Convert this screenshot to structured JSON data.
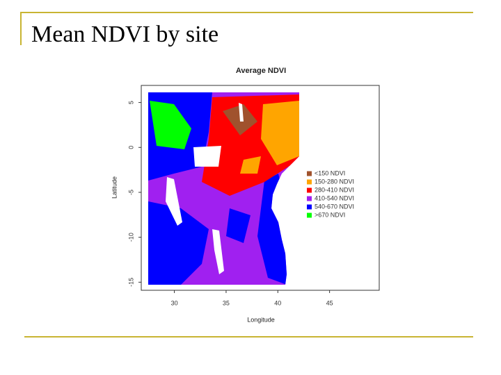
{
  "slide_title": "Mean NDVI by site",
  "chart_data": {
    "type": "map",
    "title": "Average NDVI",
    "x_label": "Longitude",
    "y_label": "Latitude",
    "xlim": [
      26.8,
      49.8
    ],
    "xticks": [
      30,
      35,
      40,
      45
    ],
    "ylim": [
      -15.9,
      6.9
    ],
    "yticks": [
      5,
      0,
      -5,
      -10,
      -15
    ],
    "legend": [
      {
        "label": "<150 NDVI",
        "color": "#a0522d"
      },
      {
        "label": "150-280 NDVI",
        "color": "#ffa500"
      },
      {
        "label": "280-410 NDVI",
        "color": "#ff0000"
      },
      {
        "label": "410-540 NDVI",
        "color": "#a020f0"
      },
      {
        "label": "540-670 NDVI",
        "color": "#0000ff"
      },
      {
        "label": ">670 NDVI",
        "color": "#00ff00"
      }
    ]
  }
}
